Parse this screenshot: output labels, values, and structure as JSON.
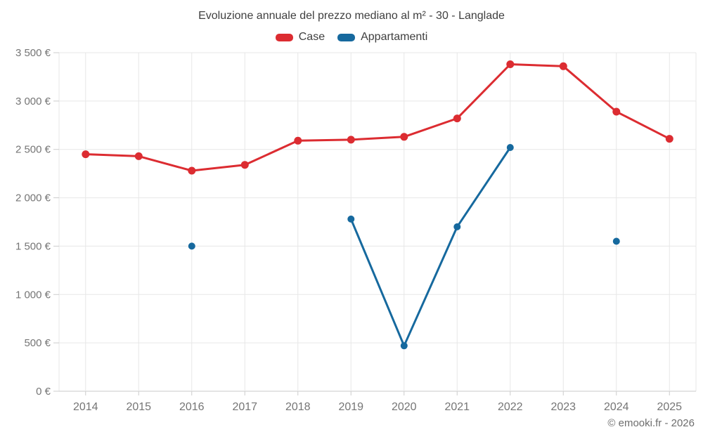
{
  "title": "Evoluzione annuale del prezzo mediano al m² - 30 - Langlade",
  "footer": {
    "copyright": "© emooki.fr - 2026"
  },
  "colors": {
    "case_red": "#dc2c31",
    "appartamenti_blue": "#16699e",
    "grid": "#e7e7e7",
    "axis_line": "#c9c9c9",
    "tick": "#cccccc",
    "axis_text": "#757575",
    "title_text": "#3f3f3f"
  },
  "chart_data": {
    "type": "line",
    "categories": [
      "2014",
      "2015",
      "2016",
      "2017",
      "2018",
      "2019",
      "2020",
      "2021",
      "2022",
      "2023",
      "2024",
      "2025"
    ],
    "series": [
      {
        "name": "Case",
        "color": "#dc2c31",
        "values": [
          2450,
          2430,
          2280,
          2340,
          2590,
          2600,
          2630,
          2820,
          3380,
          3360,
          2890,
          2610
        ]
      },
      {
        "name": "Appartamenti",
        "color": "#16699e",
        "values": [
          null,
          null,
          1500,
          null,
          null,
          1780,
          470,
          1700,
          2520,
          null,
          1550,
          null
        ]
      }
    ],
    "title": "Evoluzione annuale del prezzo mediano al m² - 30 - Langlade",
    "xlabel": "",
    "ylabel": "",
    "ylim": [
      0,
      3500
    ],
    "ytick_step": 500,
    "y_tick_labels": [
      "0 €",
      "500 €",
      "1 000 €",
      "1 500 €",
      "2 000 €",
      "2 500 €",
      "3 000 €",
      "3 500 €"
    ],
    "grid": true,
    "legend_position": "top"
  }
}
